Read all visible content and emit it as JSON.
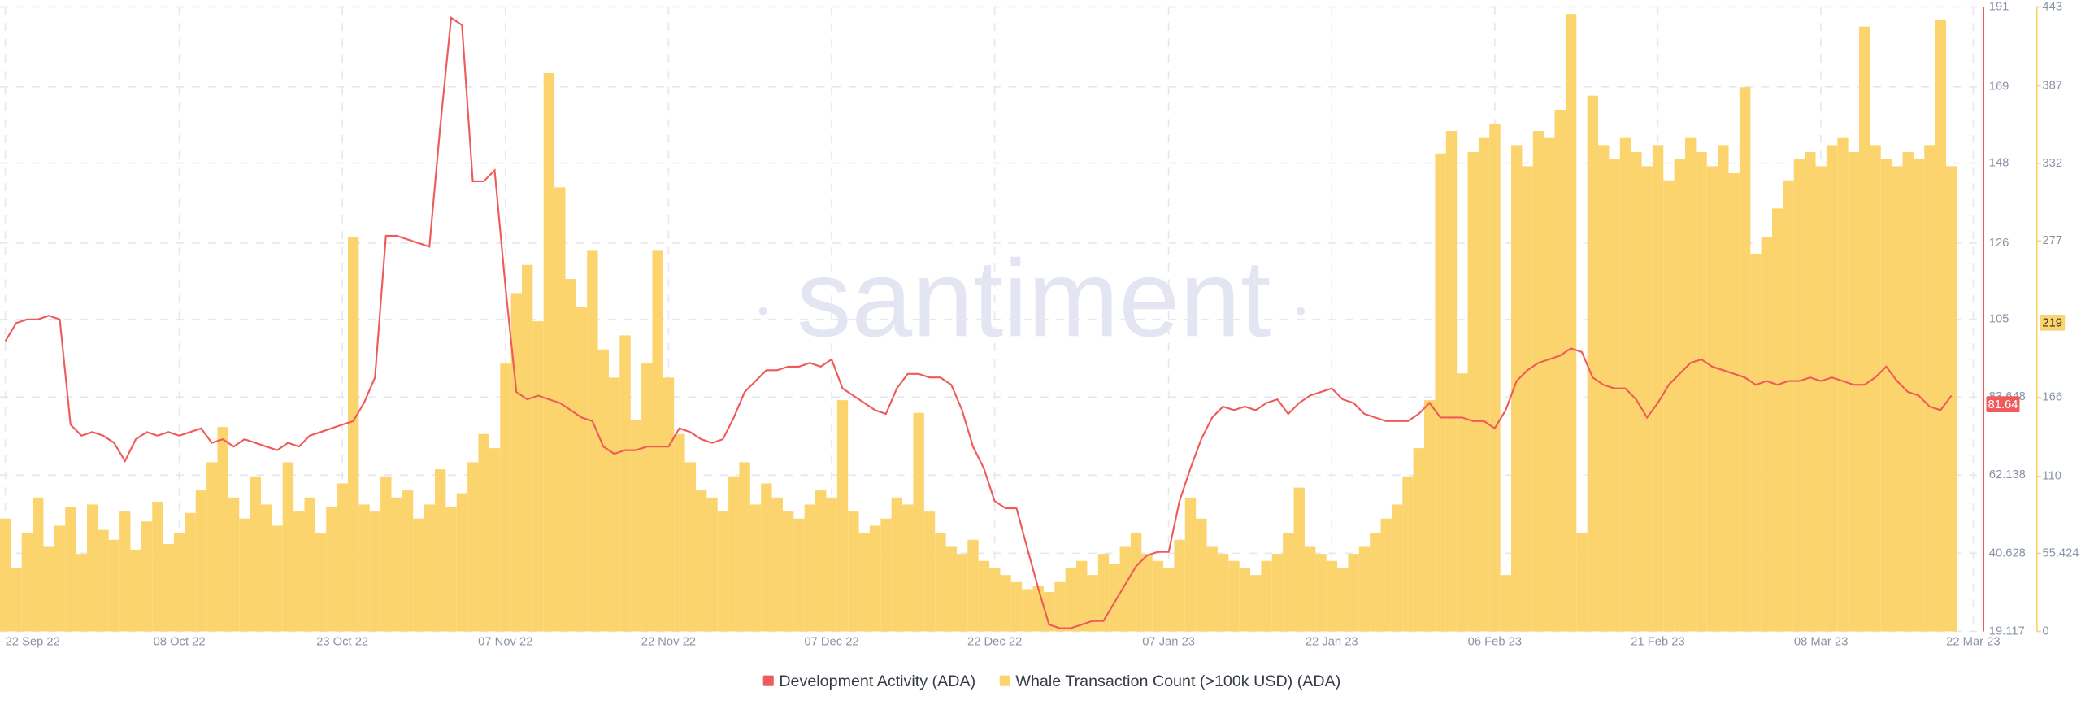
{
  "chart_data": {
    "type": "combo",
    "watermark": "santiment",
    "categories": [
      "22 Sep 22",
      null,
      null,
      null,
      null,
      null,
      null,
      null,
      null,
      null,
      null,
      null,
      null,
      null,
      null,
      null,
      "08 Oct 22",
      null,
      null,
      null,
      null,
      null,
      null,
      null,
      null,
      null,
      null,
      null,
      null,
      null,
      null,
      "23 Oct 22",
      null,
      null,
      null,
      null,
      null,
      null,
      null,
      null,
      null,
      null,
      null,
      null,
      null,
      null,
      "07 Nov 22",
      null,
      null,
      null,
      null,
      null,
      null,
      null,
      null,
      null,
      null,
      null,
      null,
      null,
      null,
      "22 Nov 22",
      null,
      null,
      null,
      null,
      null,
      null,
      null,
      null,
      null,
      null,
      null,
      null,
      null,
      null,
      "07 Dec 22",
      null,
      null,
      null,
      null,
      null,
      null,
      null,
      null,
      null,
      null,
      null,
      null,
      null,
      null,
      "22 Dec 22",
      null,
      null,
      null,
      null,
      null,
      null,
      null,
      null,
      null,
      null,
      null,
      null,
      null,
      null,
      null,
      "07 Jan 23",
      null,
      null,
      null,
      null,
      null,
      null,
      null,
      null,
      null,
      null,
      null,
      null,
      null,
      null,
      "22 Jan 23",
      null,
      null,
      null,
      null,
      null,
      null,
      null,
      null,
      null,
      null,
      null,
      null,
      null,
      null,
      "06 Feb 23",
      null,
      null,
      null,
      null,
      null,
      null,
      null,
      null,
      null,
      null,
      null,
      null,
      null,
      null,
      "21 Feb 23",
      null,
      null,
      null,
      null,
      null,
      null,
      null,
      null,
      null,
      null,
      null,
      null,
      null,
      null,
      "08 Mar 23",
      null,
      null,
      null,
      null,
      null,
      null,
      null,
      null,
      null,
      null,
      null,
      null,
      null,
      "22 Mar 23"
    ],
    "series": [
      {
        "name": "Development Activity (ADA)",
        "type": "line",
        "axis": "y",
        "color": "#ef5b5b",
        "last_value": 81.64,
        "values": [
          99,
          104,
          105,
          105,
          106,
          105,
          76,
          73,
          74,
          73,
          71,
          66,
          72,
          74,
          73,
          74,
          73,
          74,
          75,
          71,
          72,
          70,
          72,
          71,
          70,
          69,
          71,
          70,
          73,
          74,
          75,
          76,
          77,
          82,
          89,
          128,
          128,
          127,
          126,
          125,
          158,
          188,
          186,
          143,
          143,
          146,
          114,
          85,
          83,
          84,
          83,
          82,
          80,
          78,
          77,
          70,
          68,
          69,
          69,
          70,
          70,
          70,
          75,
          74,
          72,
          71,
          72,
          78,
          85,
          88,
          91,
          91,
          92,
          92,
          93,
          92,
          94,
          86,
          84,
          82,
          80,
          79,
          86,
          90,
          90,
          89,
          89,
          87,
          80,
          70,
          64,
          55,
          53,
          53,
          42,
          31,
          21,
          20,
          20,
          21,
          22,
          22,
          27,
          32,
          37,
          40,
          41,
          41,
          55,
          64,
          72,
          78,
          81,
          80,
          81,
          80,
          82,
          83,
          79,
          82,
          84,
          85,
          86,
          83,
          82,
          79,
          78,
          77,
          77,
          77,
          79,
          82,
          78,
          78,
          78,
          77,
          77,
          75,
          80,
          88,
          91,
          93,
          94,
          95,
          97,
          96,
          89,
          87,
          86,
          86,
          83,
          78,
          82,
          87,
          90,
          93,
          94,
          92,
          91,
          90,
          89,
          87,
          88,
          87,
          88,
          88,
          89,
          88,
          89,
          88,
          87,
          87,
          89,
          92,
          88,
          85,
          84,
          81,
          80,
          84,
          null,
          null
        ]
      },
      {
        "name": "Whale Transaction Count (>100k USD) (ADA)",
        "type": "bar",
        "axis": "y2",
        "color": "#fbd46d",
        "last_value": 219,
        "values": [
          80,
          45,
          70,
          95,
          60,
          75,
          88,
          55,
          90,
          72,
          65,
          85,
          58,
          78,
          92,
          62,
          70,
          84,
          100,
          120,
          145,
          95,
          80,
          110,
          90,
          75,
          120,
          85,
          95,
          70,
          88,
          105,
          280,
          90,
          85,
          110,
          95,
          100,
          80,
          90,
          115,
          88,
          98,
          120,
          140,
          130,
          190,
          240,
          260,
          220,
          396,
          315,
          250,
          230,
          270,
          200,
          180,
          210,
          150,
          190,
          270,
          180,
          140,
          120,
          100,
          95,
          85,
          110,
          120,
          90,
          105,
          95,
          85,
          80,
          90,
          100,
          95,
          164,
          85,
          70,
          75,
          80,
          95,
          90,
          155,
          85,
          70,
          60,
          55,
          65,
          50,
          45,
          40,
          35,
          30,
          32,
          28,
          35,
          45,
          50,
          40,
          55,
          48,
          60,
          70,
          55,
          50,
          45,
          65,
          95,
          80,
          60,
          55,
          50,
          45,
          40,
          50,
          55,
          70,
          102,
          60,
          55,
          50,
          45,
          55,
          60,
          70,
          80,
          90,
          110,
          130,
          164,
          339,
          355,
          183,
          340,
          350,
          360,
          40,
          345,
          330,
          355,
          350,
          370,
          438,
          70,
          380,
          345,
          335,
          350,
          340,
          330,
          345,
          320,
          335,
          350,
          340,
          330,
          345,
          325,
          386,
          268,
          280,
          300,
          320,
          335,
          340,
          330,
          345,
          350,
          340,
          429,
          345,
          335,
          330,
          340,
          335,
          345,
          434,
          330,
          null,
          null
        ]
      }
    ],
    "ylim": [
      19.117,
      191
    ],
    "yticks": [
      19.117,
      40.628,
      62.138,
      83.648,
      105,
      126,
      148,
      169,
      191
    ],
    "y2lim": [
      0,
      443
    ],
    "y2ticks": [
      0,
      55.424,
      110,
      166,
      277,
      332,
      387,
      443
    ],
    "grid": true
  }
}
